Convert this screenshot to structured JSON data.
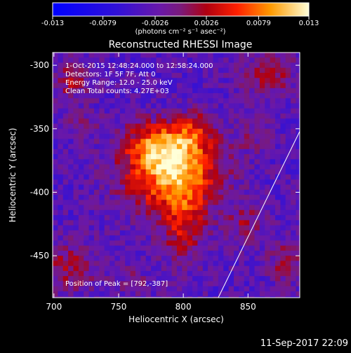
{
  "chart_data": {
    "type": "heatmap",
    "title": "Reconstructed RHESSI Image",
    "xlabel": "Heliocentric X (arcsec)",
    "ylabel": "Heliocentric Y (arcsec)",
    "xlim": [
      699,
      890
    ],
    "ylim": [
      -483,
      -290
    ],
    "x_ticks": [
      700,
      750,
      800,
      850
    ],
    "y_ticks": [
      -300,
      -350,
      -400,
      -450
    ],
    "colorbar": {
      "range": [
        -0.013,
        0.013
      ],
      "tick_values": [
        -0.013,
        -0.0079,
        -0.0026,
        0.0026,
        0.0079,
        0.013
      ],
      "tick_labels": [
        "-0.013",
        "-0.0079",
        "-0.0026",
        "0.0026",
        "0.0079",
        "0.013"
      ],
      "units_label": "(photons cm⁻² s⁻¹ asec⁻²)"
    },
    "annotations": [
      "1-Oct-2015 12:48:24.000 to 12:58:24.000",
      "Detectors: 1F 5F 7F, Att 0",
      "Energy Range: 12.0 - 25.0 keV",
      "Clean   Total counts: 4.27E+03",
      "Position of Peak = [792,-387]"
    ],
    "peak": {
      "x": 792,
      "y": -387
    },
    "limb_line": {
      "points": [
        [
          827,
          -483
        ],
        [
          890,
          -352
        ]
      ]
    },
    "source_features": [
      {
        "x": 792,
        "y": -385,
        "sx": 26,
        "sy": 20,
        "value": 0.013
      },
      {
        "x": 782,
        "y": -362,
        "sx": 18,
        "sy": 12,
        "value": 0.009
      },
      {
        "x": 810,
        "y": -352,
        "sx": 10,
        "sy": 10,
        "value": 0.006
      },
      {
        "x": 800,
        "y": -425,
        "sx": 12,
        "sy": 22,
        "value": 0.0065
      },
      {
        "x": 714,
        "y": -312,
        "sx": 10,
        "sy": 10,
        "value": 0.005
      },
      {
        "x": 722,
        "y": -345,
        "sx": 9,
        "sy": 8,
        "value": 0.003
      },
      {
        "x": 866,
        "y": -308,
        "sx": 14,
        "sy": 12,
        "value": 0.0055
      },
      {
        "x": 855,
        "y": -355,
        "sx": 10,
        "sy": 9,
        "value": 0.003
      },
      {
        "x": 848,
        "y": -425,
        "sx": 10,
        "sy": 10,
        "value": 0.0045
      },
      {
        "x": 880,
        "y": -455,
        "sx": 10,
        "sy": 12,
        "value": 0.0045
      },
      {
        "x": 712,
        "y": -458,
        "sx": 16,
        "sy": 14,
        "value": 0.005
      },
      {
        "x": 760,
        "y": -470,
        "sx": 10,
        "sy": 8,
        "value": 0.0025
      }
    ]
  },
  "footer": {
    "timestamp": "11-Sep-2017 22:09"
  }
}
